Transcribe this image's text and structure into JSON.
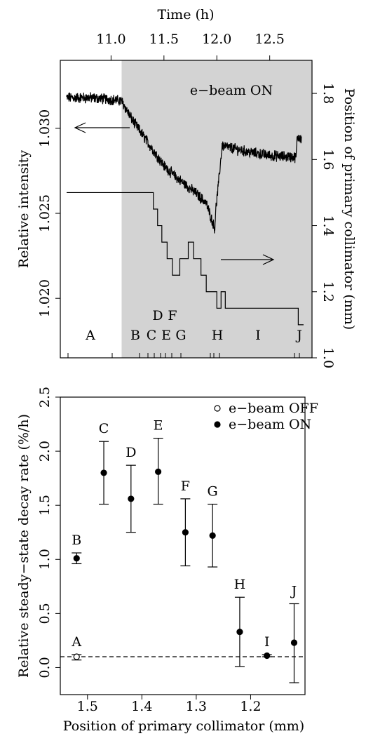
{
  "chart_data": [
    {
      "type": "line",
      "title": "",
      "xlabel": "Time (h)",
      "ylabel": "Relative intensity",
      "y2label": "Position of primary collimator (mm)",
      "xlim": [
        10.52,
        12.9
      ],
      "ylim": [
        1.0165,
        1.034
      ],
      "y2lim": [
        1.0,
        1.9
      ],
      "x_ticks": [
        "11.0",
        "11.5",
        "12.0",
        "12.5"
      ],
      "y_ticks": [
        "1.020",
        "1.025",
        "1.030"
      ],
      "y2_ticks": [
        "1.0",
        "1.2",
        "1.4",
        "1.6",
        "1.8"
      ],
      "shaded_region": {
        "label": "e−beam ON",
        "x_from": 11.1,
        "x_to": 12.9
      },
      "intensity_series": {
        "x": [
          10.58,
          10.8,
          11.0,
          11.1,
          11.2,
          11.3,
          11.4,
          11.5,
          11.6,
          11.7,
          11.8,
          11.9,
          11.98,
          11.99,
          12.02,
          12.05,
          12.1,
          12.3,
          12.5,
          12.75,
          12.76,
          12.8
        ],
        "y": [
          1.0318,
          1.0318,
          1.0317,
          1.0316,
          1.0305,
          1.0296,
          1.0287,
          1.0278,
          1.0272,
          1.0267,
          1.0262,
          1.0256,
          1.0241,
          1.0252,
          1.027,
          1.029,
          1.0289,
          1.0286,
          1.0284,
          1.0283,
          1.0295,
          1.0294
        ]
      },
      "collimator_series": {
        "x": [
          10.58,
          11.4,
          11.4,
          11.44,
          11.44,
          11.48,
          11.48,
          11.53,
          11.53,
          11.58,
          11.58,
          11.65,
          11.65,
          11.73,
          11.73,
          11.78,
          11.78,
          11.85,
          11.85,
          11.9,
          11.9,
          12.0,
          12.0,
          12.04,
          12.04,
          12.08,
          12.08,
          12.77,
          12.77,
          12.82
        ],
        "y": [
          1.5,
          1.5,
          1.45,
          1.45,
          1.4,
          1.4,
          1.35,
          1.35,
          1.3,
          1.3,
          1.25,
          1.25,
          1.3,
          1.3,
          1.35,
          1.35,
          1.3,
          1.3,
          1.25,
          1.25,
          1.2,
          1.2,
          1.15,
          1.15,
          1.2,
          1.2,
          1.15,
          1.15,
          1.1,
          1.1
        ]
      },
      "segment_labels_top": [
        "D",
        "F"
      ],
      "segment_labels_bottom": [
        "A",
        "B",
        "C",
        "E",
        "G",
        "H",
        "I",
        "J"
      ]
    },
    {
      "type": "scatter",
      "title": "",
      "xlabel": "Position of primary collimator (mm)",
      "ylabel": "Relative steady−state decay rate (%/h)",
      "xlim": [
        1.55,
        1.1
      ],
      "ylim": [
        -0.25,
        2.5
      ],
      "x_ticks": [
        "1.5",
        "1.4",
        "1.3",
        "1.2"
      ],
      "y_ticks": [
        "0.0",
        "0.5",
        "1.0",
        "1.5",
        "2.0",
        "2.5"
      ],
      "reference_line": {
        "y": 0.1,
        "style": "dashed"
      },
      "legend": {
        "position": "top-right",
        "entries": [
          "e−beam OFF",
          "e−beam ON"
        ]
      },
      "series": [
        {
          "name": "e−beam OFF",
          "points": [
            {
              "label": "A",
              "x": 1.52,
              "y": 0.1,
              "err_low": 0.07,
              "err_high": 0.12
            }
          ]
        },
        {
          "name": "e−beam ON",
          "points": [
            {
              "label": "B",
              "x": 1.52,
              "y": 1.01,
              "err_low": 0.96,
              "err_high": 1.06
            },
            {
              "label": "C",
              "x": 1.47,
              "y": 1.8,
              "err_low": 1.51,
              "err_high": 2.09
            },
            {
              "label": "D",
              "x": 1.42,
              "y": 1.56,
              "err_low": 1.25,
              "err_high": 1.87
            },
            {
              "label": "E",
              "x": 1.37,
              "y": 1.81,
              "err_low": 1.51,
              "err_high": 2.12
            },
            {
              "label": "F",
              "x": 1.32,
              "y": 1.25,
              "err_low": 0.94,
              "err_high": 1.56
            },
            {
              "label": "G",
              "x": 1.27,
              "y": 1.22,
              "err_low": 0.93,
              "err_high": 1.51
            },
            {
              "label": "H",
              "x": 1.22,
              "y": 0.33,
              "err_low": 0.01,
              "err_high": 0.65
            },
            {
              "label": "I",
              "x": 1.17,
              "y": 0.11,
              "err_low": 0.1,
              "err_high": 0.12
            },
            {
              "label": "J",
              "x": 1.12,
              "y": 0.23,
              "err_low": -0.14,
              "err_high": 0.59
            }
          ]
        }
      ]
    }
  ]
}
